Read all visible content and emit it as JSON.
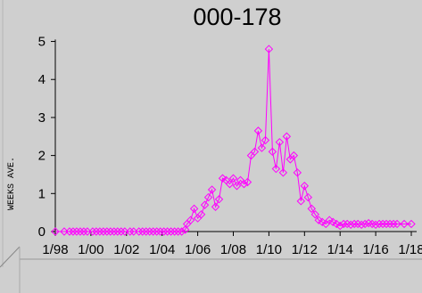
{
  "chart_data": {
    "type": "line",
    "title": "000-178",
    "xlabel": "",
    "ylabel": "WEEKS AVE.",
    "x_tick_labels": [
      "1/98",
      "1/00",
      "1/02",
      "1/04",
      "1/06",
      "1/08",
      "1/10",
      "1/12",
      "1/14",
      "1/16",
      "1/18"
    ],
    "y_ticks": [
      0,
      1,
      2,
      3,
      4,
      5
    ],
    "ylim": [
      0,
      5.2
    ],
    "xlim": [
      0,
      20.3
    ],
    "grid": false,
    "series": [
      {
        "name": "",
        "color": "#ff00ff",
        "marker": "diamond",
        "x": [
          0.0,
          0.5,
          0.8,
          1.0,
          1.2,
          1.4,
          1.6,
          1.8,
          2.1,
          2.3,
          2.5,
          2.7,
          2.9,
          3.1,
          3.3,
          3.5,
          3.7,
          3.9,
          4.2,
          4.4,
          4.7,
          4.9,
          5.1,
          5.3,
          5.5,
          5.7,
          5.9,
          6.1,
          6.3,
          6.5,
          6.7,
          6.9,
          7.1,
          7.3,
          7.4,
          7.6,
          7.8,
          8.0,
          8.2,
          8.4,
          8.6,
          8.8,
          9.0,
          9.2,
          9.4,
          9.6,
          9.8,
          10.0,
          10.2,
          10.4,
          10.6,
          10.8,
          11.0,
          11.2,
          11.4,
          11.6,
          11.8,
          12.0,
          12.2,
          12.4,
          12.6,
          12.8,
          13.0,
          13.2,
          13.4,
          13.6,
          13.8,
          14.0,
          14.2,
          14.4,
          14.6,
          14.8,
          15.0,
          15.2,
          15.4,
          15.6,
          15.8,
          16.0,
          16.2,
          16.4,
          16.6,
          16.8,
          17.0,
          17.2,
          17.4,
          17.6,
          17.8,
          18.0,
          18.2,
          18.4,
          18.6,
          18.8,
          19.0,
          19.2,
          19.6,
          20.0
        ],
        "y": [
          0,
          0,
          0,
          0,
          0,
          0,
          0,
          0,
          0,
          0,
          0,
          0,
          0,
          0,
          0,
          0,
          0,
          0,
          0,
          0,
          0,
          0,
          0,
          0,
          0,
          0,
          0,
          0,
          0,
          0,
          0,
          0,
          0,
          0.05,
          0.2,
          0.3,
          0.6,
          0.35,
          0.45,
          0.7,
          0.9,
          1.1,
          0.65,
          0.85,
          1.4,
          1.35,
          1.25,
          1.4,
          1.2,
          1.35,
          1.25,
          1.3,
          2.0,
          2.1,
          2.65,
          2.2,
          2.4,
          4.8,
          2.1,
          1.65,
          2.35,
          1.55,
          2.5,
          1.9,
          2.0,
          1.55,
          0.8,
          1.2,
          0.9,
          0.6,
          0.45,
          0.3,
          0.25,
          0.2,
          0.3,
          0.25,
          0.2,
          0.15,
          0.2,
          0.2,
          0.18,
          0.2,
          0.2,
          0.18,
          0.2,
          0.22,
          0.2,
          0.18,
          0.2,
          0.2,
          0.2,
          0.2,
          0.2,
          0.2,
          0.2,
          0.2
        ]
      }
    ]
  }
}
